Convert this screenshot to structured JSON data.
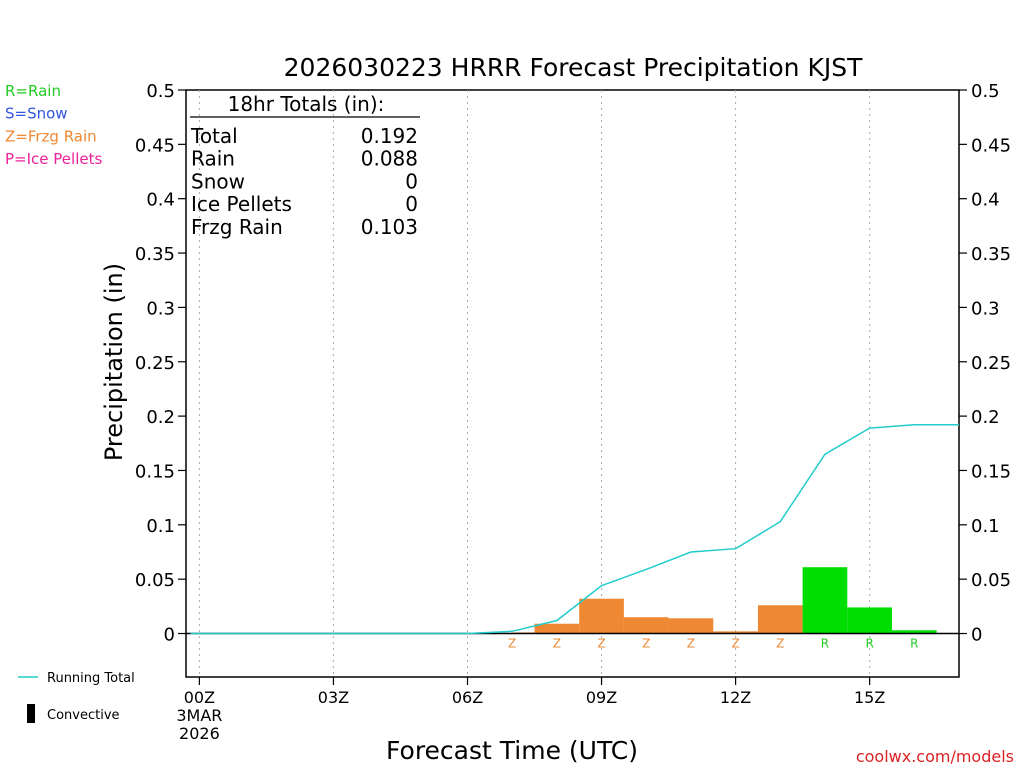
{
  "chart_data": {
    "type": "bar",
    "title": "2026030223 HRRR Forecast Precipitation KJST",
    "xlabel": "Forecast Time (UTC)",
    "ylabel": "Precipitation (in)",
    "ylim": [
      -0.04,
      0.5
    ],
    "y_ticks": [
      "0.5",
      "0.45",
      "0.4",
      "0.35",
      "0.3",
      "0.25",
      "0.2",
      "0.15",
      "0.1",
      "0.05",
      "0"
    ],
    "y_tick_values": [
      0.5,
      0.45,
      0.4,
      0.35,
      0.3,
      0.25,
      0.2,
      0.15,
      0.1,
      0.05,
      0
    ],
    "xlim": [
      -0.3,
      17.0
    ],
    "x_ticks": [
      {
        "hour": 0,
        "label": "00Z",
        "sub1": "3MAR",
        "sub2": "2026"
      },
      {
        "hour": 3,
        "label": "03Z"
      },
      {
        "hour": 6,
        "label": "06Z"
      },
      {
        "hour": 9,
        "label": "09Z"
      },
      {
        "hour": 12,
        "label": "12Z"
      },
      {
        "hour": 15,
        "label": "15Z"
      }
    ],
    "grid": "vertical dotted at tick hours",
    "legend_types": [
      {
        "label": "R=Rain",
        "color": "#22cc22"
      },
      {
        "label": "S=Snow",
        "color": "#3355dd"
      },
      {
        "label": "Z=Frzg Rain",
        "color": "#ee8833"
      },
      {
        "label": "P=Ice Pellets",
        "color": "#ee2299"
      }
    ],
    "legend_lines": {
      "running_total": "Running Total",
      "convective": "Convective"
    },
    "totals": {
      "header": "18hr Totals (in):",
      "rows": [
        {
          "label": "Total",
          "value": "0.192"
        },
        {
          "label": "Rain",
          "value": "0.088"
        },
        {
          "label": "Snow",
          "value": "0"
        },
        {
          "label": "Ice Pellets",
          "value": "0"
        },
        {
          "label": "Frzg Rain",
          "value": "0.103"
        }
      ]
    },
    "bars": [
      {
        "start": 7,
        "end": 8,
        "value": 0.001,
        "type": "Z",
        "color": "#ee8833"
      },
      {
        "start": 7.5,
        "end": 8.5,
        "value": 0.009,
        "type": "Z",
        "color": "#ee8833"
      },
      {
        "start": 8.5,
        "end": 9.5,
        "value": 0.032,
        "type": "Z",
        "color": "#ee8833"
      },
      {
        "start": 9.5,
        "end": 10.5,
        "value": 0.015,
        "type": "Z",
        "color": "#ee8833"
      },
      {
        "start": 10.5,
        "end": 11.5,
        "value": 0.014,
        "type": "Z",
        "color": "#ee8833"
      },
      {
        "start": 11.5,
        "end": 12.5,
        "value": 0.002,
        "type": "Z",
        "color": "#ee8833"
      },
      {
        "start": 12.5,
        "end": 13.5,
        "value": 0.026,
        "type": "Z",
        "color": "#ee8833"
      },
      {
        "start": 13.5,
        "end": 14.5,
        "value": 0.061,
        "type": "R",
        "color": "#00dd00"
      },
      {
        "start": 14.5,
        "end": 15.5,
        "value": 0.024,
        "type": "R",
        "color": "#00dd00"
      },
      {
        "start": 15.5,
        "end": 16.5,
        "value": 0.003,
        "type": "R",
        "color": "#00dd00"
      }
    ],
    "type_labels": [
      {
        "hour": 7,
        "text": "Z",
        "color": "#ee8833"
      },
      {
        "hour": 8,
        "text": "Z",
        "color": "#ee8833"
      },
      {
        "hour": 9,
        "text": "Z",
        "color": "#ee8833"
      },
      {
        "hour": 10,
        "text": "Z",
        "color": "#ee8833"
      },
      {
        "hour": 11,
        "text": "Z",
        "color": "#ee8833"
      },
      {
        "hour": 12,
        "text": "Z",
        "color": "#ee8833"
      },
      {
        "hour": 13,
        "text": "Z",
        "color": "#ee8833"
      },
      {
        "hour": 14,
        "text": "R",
        "color": "#22cc22"
      },
      {
        "hour": 15,
        "text": "R",
        "color": "#22cc22"
      },
      {
        "hour": 16,
        "text": "R",
        "color": "#22cc22"
      }
    ],
    "running_total": {
      "x": [
        -0.2,
        6,
        7,
        8,
        9,
        10,
        11,
        12,
        13,
        14,
        15,
        16,
        17
      ],
      "y": [
        0,
        0,
        0.002,
        0.012,
        0.044,
        0.059,
        0.075,
        0.078,
        0.103,
        0.165,
        0.189,
        0.192,
        0.192
      ],
      "color": "#22cccc"
    },
    "credit": "coolwx.com/models"
  }
}
